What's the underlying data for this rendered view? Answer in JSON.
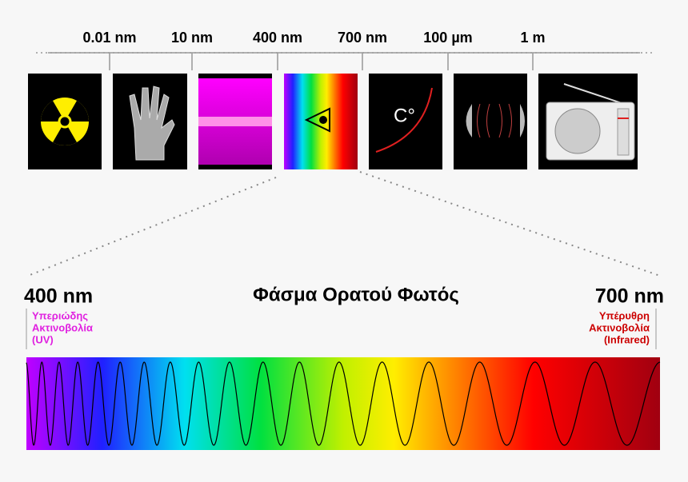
{
  "scale": {
    "labels": [
      "0.01 nm",
      "10 nm",
      "400 nm",
      "700 nm",
      "100 µm",
      "1 m"
    ]
  },
  "panels": {
    "thermometer_label": "C°"
  },
  "title": "Φάσμα Ορατού Φωτός",
  "left": {
    "wavelength": "400 nm",
    "lines": [
      "Υπεριώδης",
      "Ακτινοβολία",
      "(UV)"
    ]
  },
  "right": {
    "wavelength": "700 nm",
    "lines": [
      "Υπέρυθρη",
      "Ακτινοβολία",
      "(Infrared)"
    ]
  }
}
